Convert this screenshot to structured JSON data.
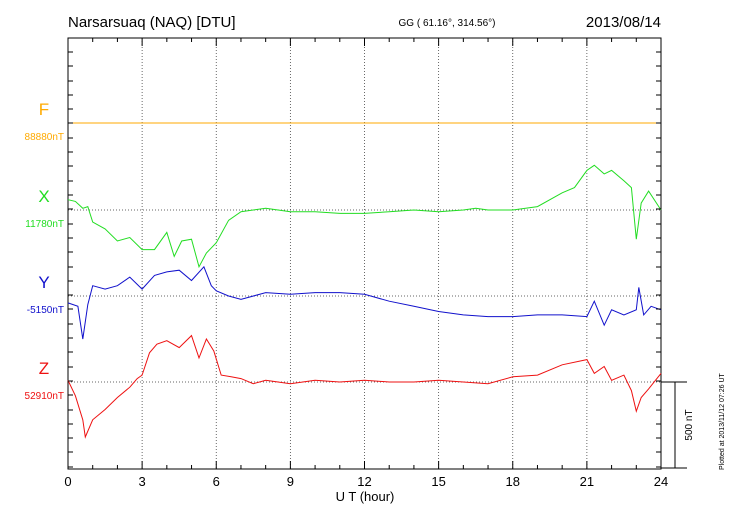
{
  "header": {
    "station": "Narsarsuaq (NAQ)  [DTU]",
    "coords": "GG ( 61.16°, 314.56°)",
    "date": "2013/08/14"
  },
  "footer": {
    "plotted": "Plotted at 2013/11/12 07:26 UT"
  },
  "colors": {
    "F": "#ffaa00",
    "X": "#22dd22",
    "Y": "#1111cc",
    "Z": "#ee1111"
  },
  "chart_data": {
    "type": "line",
    "xlabel": "U T (hour)",
    "xlim": [
      0,
      24
    ],
    "xticks": [
      0,
      3,
      6,
      9,
      12,
      15,
      18,
      21,
      24
    ],
    "scale_bar": "500 nT",
    "series": [
      {
        "name": "F",
        "baseline_label": "88880nT",
        "x": [
          0,
          24
        ],
        "values": [
          0,
          0
        ]
      },
      {
        "name": "X",
        "baseline_label": "11780nT",
        "x": [
          0,
          0.3,
          0.6,
          0.8,
          1.0,
          1.5,
          2.0,
          2.5,
          3.0,
          3.5,
          4.0,
          4.3,
          4.6,
          5.0,
          5.3,
          5.6,
          6.0,
          6.5,
          7.0,
          8.0,
          9.0,
          10.0,
          11.0,
          12.0,
          13.0,
          14.0,
          15.0,
          16.0,
          16.5,
          17.0,
          18.0,
          19.0,
          20.0,
          20.5,
          21.0,
          21.3,
          21.7,
          22.0,
          22.5,
          22.8,
          23.0,
          23.2,
          23.5,
          24.0
        ],
        "values": [
          60,
          50,
          10,
          20,
          -70,
          -110,
          -180,
          -160,
          -230,
          -230,
          -130,
          -270,
          -180,
          -170,
          -330,
          -250,
          -190,
          -60,
          -10,
          10,
          -10,
          -10,
          -20,
          -20,
          -10,
          0,
          -10,
          0,
          10,
          0,
          0,
          20,
          100,
          130,
          230,
          260,
          210,
          230,
          170,
          130,
          -170,
          40,
          110,
          0
        ]
      },
      {
        "name": "Y",
        "baseline_label": "-5150nT",
        "x": [
          0,
          0.4,
          0.6,
          0.8,
          1.0,
          1.5,
          2.0,
          2.5,
          3.0,
          3.5,
          4.0,
          4.5,
          5.0,
          5.5,
          5.8,
          6.0,
          6.5,
          7.0,
          8.0,
          9.0,
          10.0,
          11.0,
          12.0,
          13.0,
          14.0,
          15.0,
          16.0,
          17.0,
          18.0,
          19.0,
          20.0,
          21.0,
          21.3,
          21.7,
          22.0,
          22.5,
          23.0,
          23.1,
          23.3,
          23.6,
          24.0
        ],
        "values": [
          -40,
          -60,
          -250,
          -50,
          60,
          40,
          60,
          110,
          40,
          120,
          140,
          150,
          90,
          170,
          60,
          30,
          0,
          -20,
          20,
          10,
          20,
          20,
          10,
          -30,
          -60,
          -90,
          -110,
          -120,
          -120,
          -110,
          -110,
          -120,
          -30,
          -170,
          -80,
          -110,
          -80,
          50,
          -110,
          -60,
          -80
        ]
      },
      {
        "name": "Z",
        "baseline_label": "52910nT",
        "x": [
          0,
          0.3,
          0.6,
          0.7,
          1.0,
          1.5,
          2.0,
          2.5,
          2.8,
          3.0,
          3.3,
          3.6,
          4.0,
          4.5,
          5.0,
          5.3,
          5.6,
          5.9,
          6.2,
          6.6,
          7.0,
          7.5,
          8.0,
          9.0,
          10.0,
          11.0,
          12.0,
          13.0,
          14.0,
          15.0,
          16.0,
          17.0,
          18.0,
          19.0,
          20.0,
          21.0,
          21.3,
          21.7,
          22.0,
          22.5,
          22.8,
          23.0,
          23.2,
          23.5,
          24.0
        ],
        "values": [
          10,
          -80,
          -220,
          -320,
          -220,
          -160,
          -90,
          -30,
          20,
          40,
          170,
          220,
          240,
          200,
          270,
          140,
          250,
          180,
          40,
          30,
          20,
          -10,
          10,
          -10,
          10,
          0,
          10,
          0,
          0,
          10,
          0,
          -10,
          30,
          40,
          100,
          130,
          50,
          90,
          10,
          40,
          -50,
          -170,
          -90,
          -40,
          50
        ]
      }
    ]
  }
}
